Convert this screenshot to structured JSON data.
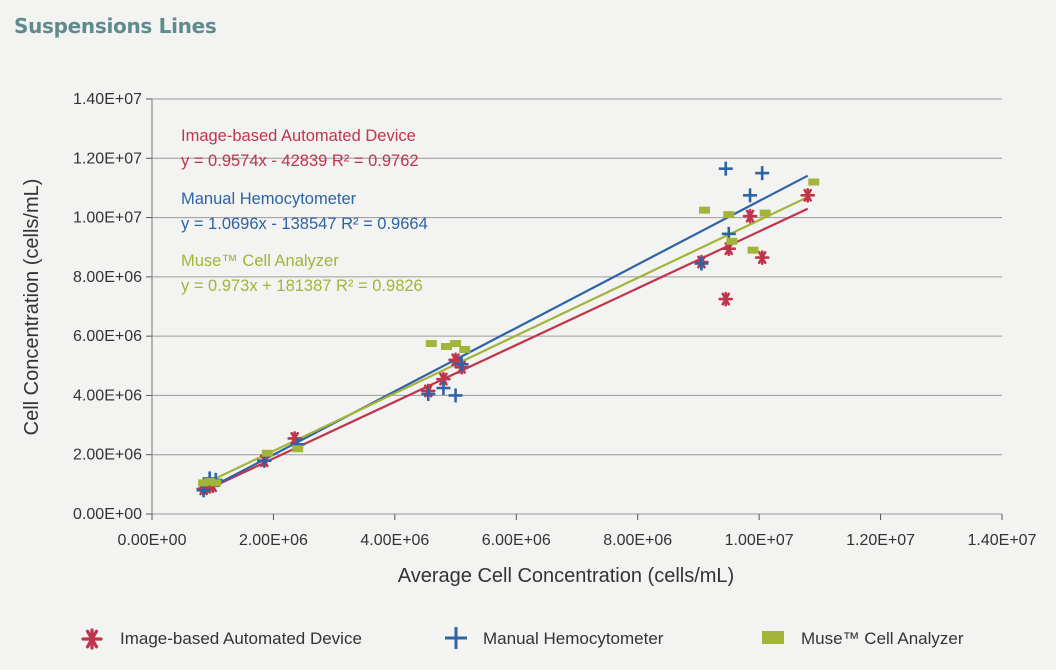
{
  "page": {
    "title": "Suspensions Lines"
  },
  "colors": {
    "image_based": "#c0344c",
    "manual": "#2e63a6",
    "muse": "#a3b43a",
    "title": "#5f8a8e",
    "grid": "#9a9a9a",
    "background": "#f3f3f2"
  },
  "chart_data": {
    "type": "scatter",
    "xlabel": "Average Cell Concentration (cells/mL)",
    "ylabel": "Cell Concentration (cells/mL)",
    "xlim": [
      0,
      14000000
    ],
    "ylim": [
      0,
      14000000
    ],
    "xticks": [
      0,
      2000000,
      4000000,
      6000000,
      8000000,
      10000000,
      12000000,
      14000000
    ],
    "yticks": [
      0,
      2000000,
      4000000,
      6000000,
      8000000,
      10000000,
      12000000,
      14000000
    ],
    "xtick_labels": [
      "0.00E+00",
      "2.00E+06",
      "4.00E+06",
      "6.00E+06",
      "8.00E+06",
      "1.00E+07",
      "1.20E+07",
      "1.40E+07"
    ],
    "ytick_labels": [
      "0.00E+00",
      "2.00E+06",
      "4.00E+06",
      "6.00E+06",
      "8.00E+06",
      "1.00E+07",
      "1.20E+07",
      "1.40E+07"
    ],
    "grid": "horizontal",
    "legend_position": "bottom",
    "series": [
      {
        "name": "Image-based Automated Device",
        "key": "image_based",
        "marker": "asterisk",
        "color": "#c0344c",
        "equation": "y = 0.9574x - 42839 R² = 0.9762",
        "fit": {
          "slope": 0.9574,
          "intercept": -42839,
          "r2": 0.9762,
          "x_range": [
            850000,
            10800000
          ]
        },
        "points": [
          [
            850000,
            850000
          ],
          [
            900000,
            900000
          ],
          [
            1000000,
            950000
          ],
          [
            1850000,
            1800000
          ],
          [
            2350000,
            2550000
          ],
          [
            4550000,
            4150000
          ],
          [
            4800000,
            4550000
          ],
          [
            5000000,
            5200000
          ],
          [
            5100000,
            4950000
          ],
          [
            9050000,
            8500000
          ],
          [
            9450000,
            7250000
          ],
          [
            9500000,
            8950000
          ],
          [
            9850000,
            10050000
          ],
          [
            10050000,
            8650000
          ],
          [
            10800000,
            10750000
          ]
        ]
      },
      {
        "name": "Manual Hemocytometer",
        "key": "manual",
        "marker": "plus",
        "color": "#2e63a6",
        "equation": "y = 1.0696x - 138547 R² = 0.9664",
        "fit": {
          "slope": 1.0696,
          "intercept": -138547,
          "r2": 0.9664,
          "x_range": [
            850000,
            10800000
          ]
        },
        "points": [
          [
            850000,
            800000
          ],
          [
            950000,
            1200000
          ],
          [
            1050000,
            1150000
          ],
          [
            1850000,
            1800000
          ],
          [
            2400000,
            2350000
          ],
          [
            4550000,
            4050000
          ],
          [
            4800000,
            4250000
          ],
          [
            5000000,
            4000000
          ],
          [
            5100000,
            5050000
          ],
          [
            9050000,
            8450000
          ],
          [
            9450000,
            11650000
          ],
          [
            9500000,
            9450000
          ],
          [
            9850000,
            10750000
          ],
          [
            10050000,
            11500000
          ]
        ]
      },
      {
        "name": "Muse™ Cell Analyzer",
        "key": "muse",
        "marker": "square",
        "color": "#a3b43a",
        "equation": "y = 0.973x + 181387 R² = 0.9826",
        "fit": {
          "slope": 0.973,
          "intercept": 181387,
          "r2": 0.9826,
          "x_range": [
            850000,
            10900000
          ]
        },
        "points": [
          [
            850000,
            1050000
          ],
          [
            950000,
            1100000
          ],
          [
            1050000,
            1050000
          ],
          [
            1900000,
            2050000
          ],
          [
            2400000,
            2200000
          ],
          [
            4600000,
            5750000
          ],
          [
            4850000,
            5650000
          ],
          [
            5000000,
            5750000
          ],
          [
            5150000,
            5550000
          ],
          [
            9100000,
            10250000
          ],
          [
            9500000,
            10100000
          ],
          [
            9550000,
            9200000
          ],
          [
            9900000,
            8900000
          ],
          [
            10100000,
            10150000
          ],
          [
            10900000,
            11200000
          ]
        ]
      }
    ]
  }
}
